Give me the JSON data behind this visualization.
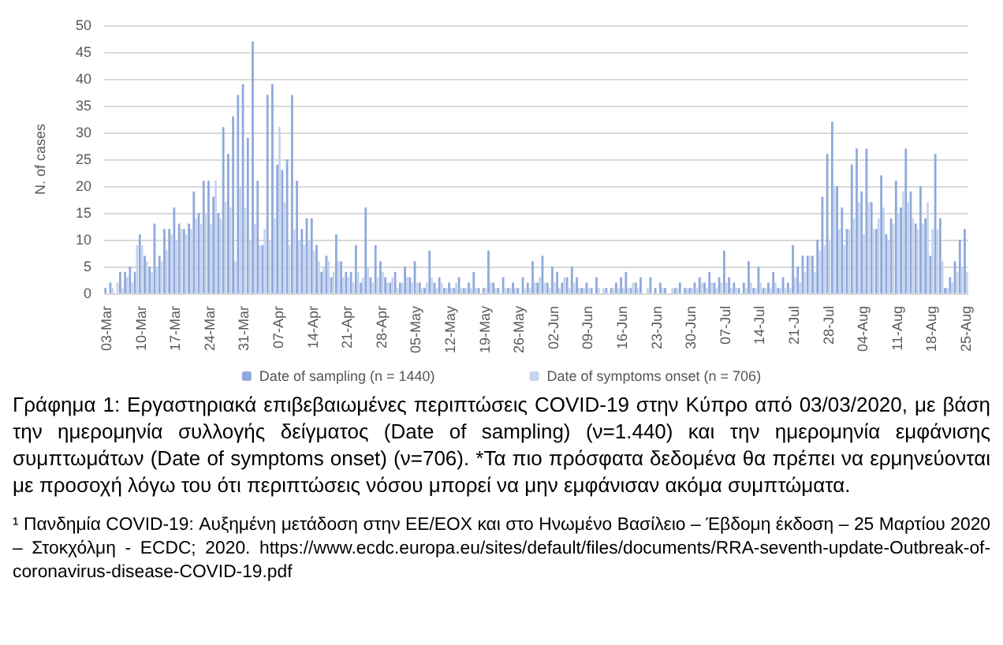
{
  "chart_data": {
    "type": "bar",
    "ylabel": "N. of cases",
    "categories": [
      "03-Mar",
      null,
      null,
      null,
      null,
      null,
      null,
      "10-Mar",
      null,
      null,
      null,
      null,
      null,
      null,
      "17-Mar",
      null,
      null,
      null,
      null,
      null,
      null,
      "24-Mar",
      null,
      null,
      null,
      null,
      null,
      null,
      "31-Mar",
      null,
      null,
      null,
      null,
      null,
      null,
      "07-Apr",
      null,
      null,
      null,
      null,
      null,
      null,
      "14-Apr",
      null,
      null,
      null,
      null,
      null,
      null,
      "21-Apr",
      null,
      null,
      null,
      null,
      null,
      null,
      "28-Apr",
      null,
      null,
      null,
      null,
      null,
      null,
      "05-May",
      null,
      null,
      null,
      null,
      null,
      null,
      "12-May",
      null,
      null,
      null,
      null,
      null,
      null,
      "19-May",
      null,
      null,
      null,
      null,
      null,
      null,
      "26-May",
      null,
      null,
      null,
      null,
      null,
      null,
      "02-Jun",
      null,
      null,
      null,
      null,
      null,
      null,
      "09-Jun",
      null,
      null,
      null,
      null,
      null,
      null,
      "16-Jun",
      null,
      null,
      null,
      null,
      null,
      null,
      "23-Jun",
      null,
      null,
      null,
      null,
      null,
      null,
      "30-Jun",
      null,
      null,
      null,
      null,
      null,
      null,
      "07-Jul",
      null,
      null,
      null,
      null,
      null,
      null,
      "14-Jul",
      null,
      null,
      null,
      null,
      null,
      null,
      "21-Jul",
      null,
      null,
      null,
      null,
      null,
      null,
      "28-Jul",
      null,
      null,
      null,
      null,
      null,
      null,
      "04-Aug",
      null,
      null,
      null,
      null,
      null,
      null,
      "11-Aug",
      null,
      null,
      null,
      null,
      null,
      null,
      "18-Aug",
      null,
      null,
      null,
      null,
      null,
      null,
      "25-Aug"
    ],
    "series": [
      {
        "name": "Date of sampling (n = 1440)",
        "color": "#8fa9dc",
        "values": [
          1,
          2,
          0,
          4,
          4,
          5,
          4,
          11,
          7,
          5,
          13,
          7,
          12,
          12,
          16,
          13,
          12,
          13,
          19,
          15,
          21,
          21,
          18,
          15,
          31,
          26,
          33,
          37,
          39,
          29,
          47,
          21,
          9,
          37,
          39,
          24,
          23,
          25,
          37,
          21,
          12,
          14,
          14,
          9,
          4,
          7,
          3,
          11,
          6,
          4,
          4,
          9,
          2,
          16,
          3,
          9,
          6,
          3,
          2,
          4,
          2,
          5,
          3,
          6,
          2,
          1,
          8,
          2,
          3,
          1,
          2,
          1,
          3,
          1,
          2,
          4,
          1,
          1,
          8,
          2,
          1,
          3,
          1,
          2,
          1,
          3,
          2,
          6,
          2,
          7,
          2,
          5,
          4,
          2,
          3,
          5,
          3,
          1,
          2,
          1,
          3,
          0,
          1,
          1,
          2,
          3,
          4,
          1,
          2,
          3,
          0,
          3,
          1,
          2,
          1,
          0,
          1,
          2,
          1,
          1,
          2,
          3,
          2,
          4,
          2,
          3,
          8,
          3,
          2,
          1,
          2,
          6,
          1,
          5,
          1,
          2,
          4,
          1,
          3,
          2,
          9,
          5,
          7,
          7,
          7,
          10,
          18,
          26,
          32,
          20,
          16,
          12,
          24,
          27,
          19,
          27,
          17,
          12,
          22,
          11,
          14,
          21,
          16,
          27,
          19,
          13,
          20,
          14,
          7,
          26,
          14,
          1,
          3,
          6,
          10,
          12
        ]
      },
      {
        "name": "Date of symptoms onset (n = 706)",
        "color": "#c5d4ef",
        "values": [
          0,
          1,
          2,
          1,
          3,
          2,
          9,
          9,
          6,
          4,
          5,
          6,
          8,
          11,
          10,
          12,
          11,
          12,
          14,
          13,
          15,
          13,
          21,
          14,
          17,
          16,
          6,
          20,
          16,
          10,
          13,
          9,
          12,
          10,
          14,
          31,
          17,
          9,
          12,
          10,
          9,
          10,
          8,
          6,
          5,
          6,
          4,
          6,
          3,
          3,
          2,
          4,
          3,
          5,
          2,
          3,
          4,
          2,
          3,
          1,
          2,
          3,
          2,
          2,
          1,
          2,
          3,
          1,
          2,
          1,
          1,
          2,
          1,
          1,
          1,
          1,
          0,
          1,
          2,
          1,
          0,
          1,
          1,
          1,
          0,
          1,
          1,
          2,
          3,
          2,
          1,
          2,
          1,
          3,
          1,
          2,
          1,
          1,
          1,
          0,
          1,
          1,
          0,
          1,
          1,
          1,
          1,
          2,
          1,
          0,
          1,
          0,
          0,
          1,
          0,
          1,
          1,
          0,
          1,
          1,
          1,
          2,
          1,
          2,
          1,
          2,
          2,
          1,
          1,
          0,
          1,
          2,
          1,
          2,
          1,
          1,
          2,
          1,
          1,
          1,
          3,
          2,
          4,
          7,
          4,
          8,
          9,
          10,
          20,
          12,
          9,
          12,
          14,
          17,
          11,
          17,
          12,
          14,
          16,
          10,
          13,
          15,
          19,
          17,
          14,
          12,
          13,
          17,
          12,
          12,
          6,
          1,
          2,
          4,
          5,
          4
        ]
      }
    ],
    "ylim": [
      0,
      50
    ],
    "yticks": [
      0,
      5,
      10,
      15,
      20,
      25,
      30,
      35,
      40,
      45,
      50
    ],
    "grid": "y",
    "legend": "bottom",
    "annotations": [
      "Γράφημα 1: Εργαστηριακά επιβεβαιωμένες περιπτώσεις COVID-19 στην Κύπρο από 03/03/2020, με βάση την ημερομηνία συλλογής δείγματος (Date of sampling) (ν=1.440) και την ημερομηνία εμφάνισης συμπτωμάτων (Date of symptoms onset) (ν=706). *Τα πιο πρόσφατα δεδομένα θα πρέπει να ερμηνεύονται με προσοχή λόγω του ότι περιπτώσεις νόσου μπορεί να μην εμφάνισαν ακόμα συμπτώματα.",
      "¹ Πανδημία COVID-19: Αυξημένη μετάδοση στην ΕΕ/ΕΟΧ και στο Ηνωμένο Βασίλειο – Έβδομη έκδοση – 25 Μαρτίου 2020 – Στοκχόλμη - ECDC; 2020. https://www.ecdc.europa.eu/sites/default/files/documents/RRA-seventh-update-Outbreak-of-coronavirus-disease-COVID-19.pdf"
    ]
  }
}
